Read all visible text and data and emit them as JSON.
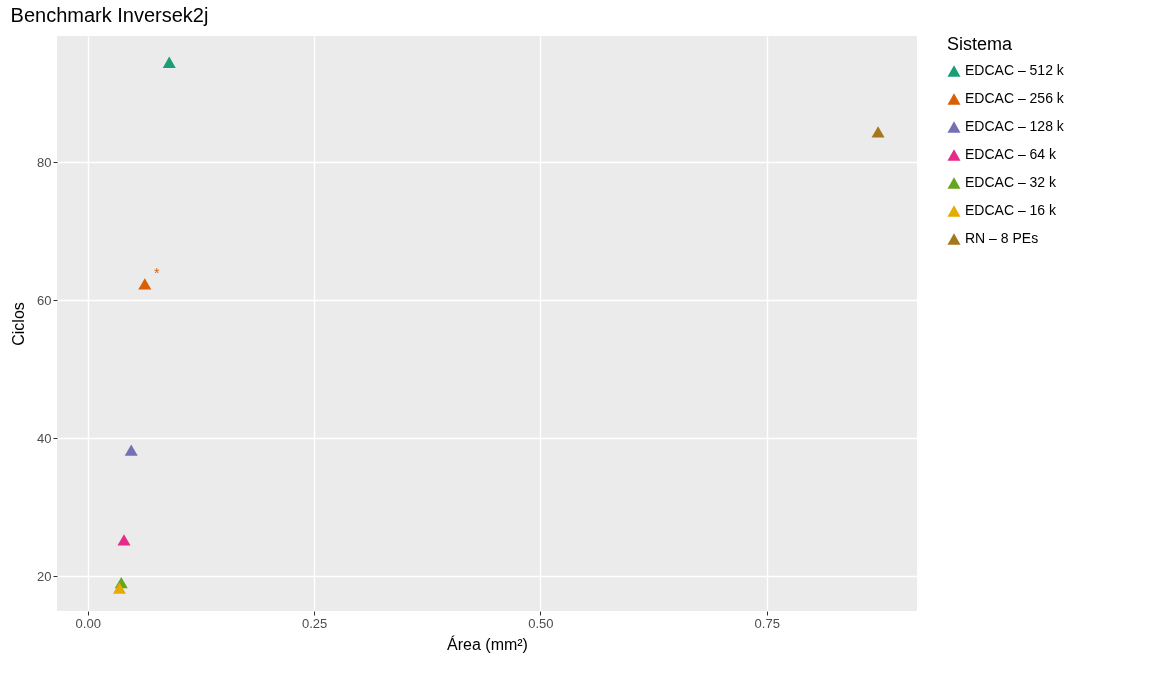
{
  "chart_data": {
    "type": "scatter",
    "title": "Benchmark Inversek2j",
    "xlabel": "Área (mm²)",
    "ylabel": "Ciclos",
    "legend_title": "Sistema",
    "series": [
      {
        "name": "EDCAC – 512 k",
        "color": "#1b9e77",
        "x": [
          0.09
        ],
        "values": [
          94.5
        ]
      },
      {
        "name": "EDCAC – 256 k",
        "color": "#d95f02",
        "x": [
          0.063
        ],
        "values": [
          62.4
        ]
      },
      {
        "name": "EDCAC – 128 k",
        "color": "#7570b3",
        "x": [
          0.048
        ],
        "values": [
          38.3
        ]
      },
      {
        "name": "EDCAC – 64 k",
        "color": "#e7298a",
        "x": [
          0.04
        ],
        "values": [
          25.3
        ]
      },
      {
        "name": "EDCAC – 32 k",
        "color": "#66a61e",
        "x": [
          0.037
        ],
        "values": [
          19.1
        ]
      },
      {
        "name": "EDCAC – 16 k",
        "color": "#e6ab02",
        "x": [
          0.035
        ],
        "values": [
          18.3
        ]
      },
      {
        "name": "RN – 8 PEs",
        "color": "#a6761d",
        "x": [
          0.873
        ],
        "values": [
          84.4
        ]
      }
    ],
    "annotations": [
      {
        "text": "*",
        "x": 0.063,
        "y": 62.4
      }
    ],
    "xlim": [
      -0.034,
      0.916
    ],
    "ylim": [
      15.0,
      98.3
    ],
    "xticks": [
      {
        "value": 0,
        "label": "0.00"
      },
      0.25,
      {
        "value": 0.5,
        "label": "0.50"
      },
      0.75
    ],
    "yticks": [
      20,
      40,
      60,
      80
    ],
    "grid": true,
    "legend": "right",
    "marker": "triangle"
  }
}
